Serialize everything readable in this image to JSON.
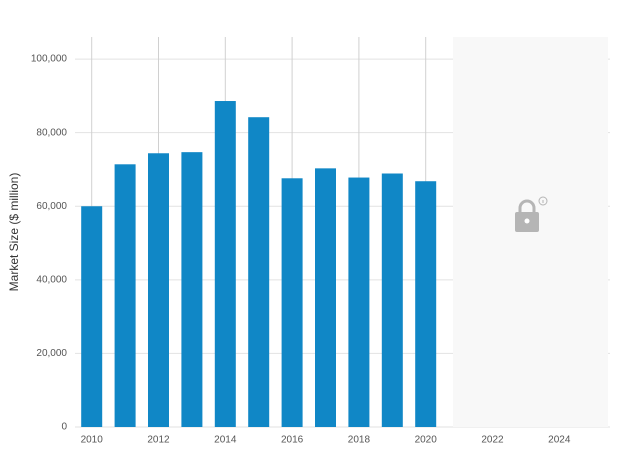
{
  "chart_data": {
    "type": "bar",
    "y_label": "Market Size ($ million)",
    "categories": [
      "2010",
      null,
      "2012",
      null,
      "2014",
      null,
      "2016",
      null,
      "2018",
      null,
      "2020",
      null,
      "2022",
      null,
      "2024"
    ],
    "values": [
      60000,
      71400,
      74400,
      74700,
      88600,
      84200,
      67600,
      70300,
      67800,
      68900,
      66800,
      null,
      null,
      null,
      null
    ],
    "color": "#1087c6",
    "ylim": [
      0,
      106000
    ],
    "yticks": [
      0,
      {
        "value": 20000,
        "label": "20,000"
      },
      {
        "value": 40000,
        "label": "40,000"
      },
      {
        "value": 60000,
        "label": "60,000"
      },
      {
        "value": 80000,
        "label": "80,000"
      },
      {
        "value": 100000,
        "label": "100,000"
      }
    ],
    "grid": true
  }
}
